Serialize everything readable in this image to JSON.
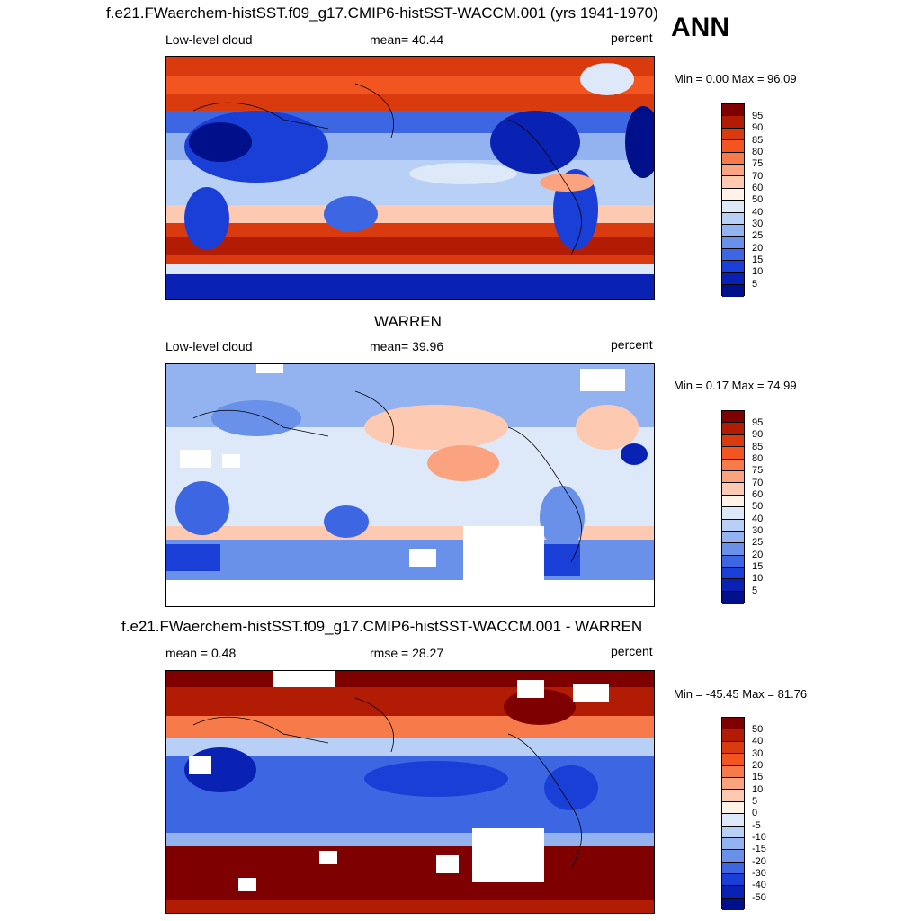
{
  "season": "ANN",
  "panels": [
    {
      "title": "f.e21.FWaerchem-histSST.f09_g17.CMIP6-histSST-WACCM.001 (yrs 1941-1970)",
      "left_label": "Low-level cloud",
      "stat_label": "mean=  40.44",
      "units": "percent",
      "minmax": "Min =   0.00 Max =  96.09",
      "colorbar_labels": [
        "95",
        "90",
        "85",
        "80",
        "75",
        "70",
        "60",
        "50",
        "40",
        "30",
        "25",
        "20",
        "15",
        "10",
        "5"
      ]
    },
    {
      "title": "WARREN",
      "left_label": "Low-level cloud",
      "stat_label": "mean=  39.96",
      "units": "percent",
      "minmax": "Min =   0.17 Max =  74.99",
      "colorbar_labels": [
        "95",
        "90",
        "85",
        "80",
        "75",
        "70",
        "60",
        "50",
        "40",
        "30",
        "25",
        "20",
        "15",
        "10",
        "5"
      ]
    },
    {
      "title": "f.e21.FWaerchem-histSST.f09_g17.CMIP6-histSST-WACCM.001 - WARREN",
      "left_label": "mean =   0.48",
      "stat_label": "rmse =  28.27",
      "units": "percent",
      "minmax": "Min = -45.45 Max =  81.76",
      "colorbar_labels": [
        "50",
        "40",
        "30",
        "20",
        "15",
        "10",
        "5",
        "0",
        "-5",
        "-10",
        "-15",
        "-20",
        "-30",
        "-40",
        "-50"
      ]
    }
  ],
  "colors": {
    "scale": [
      "#7f0000",
      "#b31c04",
      "#d93a0e",
      "#f2551f",
      "#f77b4a",
      "#fba37f",
      "#fdcab1",
      "#fff2e6",
      "#dde9f9",
      "#b8d0f5",
      "#92b3f0",
      "#6a91ea",
      "#3d66e3",
      "#1a3fd6",
      "#0a22b4",
      "#00108a"
    ]
  }
}
